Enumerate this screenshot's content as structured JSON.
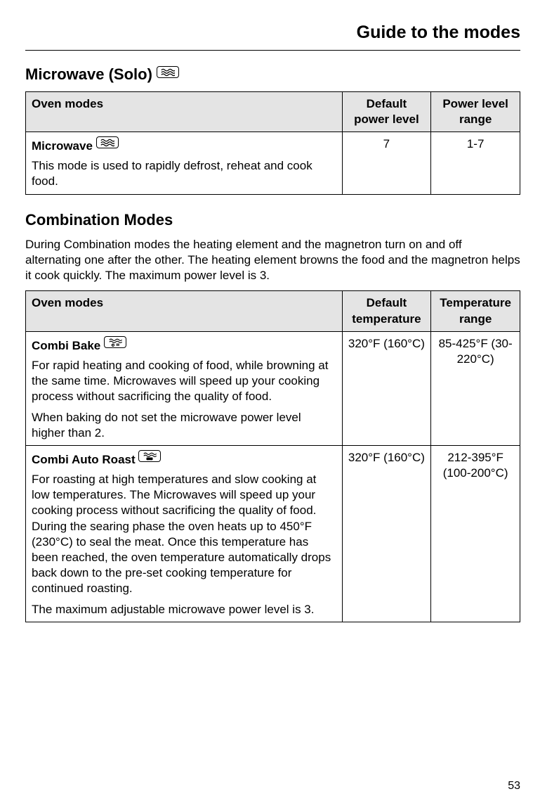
{
  "pageTitle": "Guide to the modes",
  "pageNumber": "53",
  "sections": [
    {
      "heading": "Microwave (Solo)",
      "headingIcon": "microwave",
      "intro": null,
      "headers": [
        "Oven modes",
        "Default power level",
        "Power level range"
      ],
      "rows": [
        {
          "name": "Microwave",
          "icon": "microwave",
          "descriptions": [
            "This mode is used to rapidly defrost, reheat and cook food."
          ],
          "colA": "7",
          "colB": "1-7"
        }
      ]
    },
    {
      "heading": "Combination Modes",
      "headingIcon": null,
      "intro": "During Combination modes the heating element and the magnetron turn on and off alternating one after the other. The heating element browns the food and the magnetron helps it cook quickly. The maximum power level is 3.",
      "headers": [
        "Oven modes",
        "Default temperature",
        "Temperature range"
      ],
      "rows": [
        {
          "name": "Combi Bake",
          "icon": "combi-bake",
          "descriptions": [
            "For rapid heating and cooking of food, while browning at the same time. Microwaves will speed up your cooking process without sacrificing the quality of food.",
            "When baking do not set the microwave power level higher than 2."
          ],
          "colA": "320°F (160°C)",
          "colB": "85-425°F (30-220°C)"
        },
        {
          "name": "Combi Auto Roast",
          "icon": "combi-roast",
          "descriptions": [
            "For roasting at high temperatures and slow cooking at low temperatures. The Microwaves will speed up your cooking process without sacrificing the quality of food. During the searing phase the oven heats up to 450°F (230°C) to seal the meat. Once this temperature has been reached, the oven temperature automatically drops back down to the pre-set cooking temperature for continued roasting.",
            "The maximum adjustable microwave power level is 3."
          ],
          "colA": "320°F (160°C)",
          "colB": "212-395°F (100-200°C)"
        }
      ]
    }
  ]
}
